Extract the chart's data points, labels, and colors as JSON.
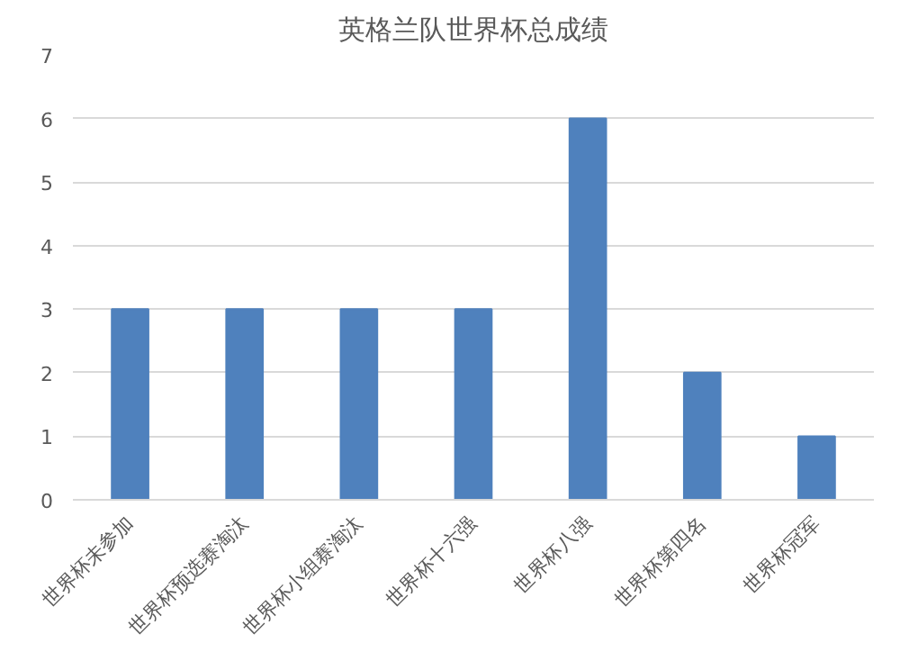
{
  "chart_data": {
    "type": "bar",
    "title": "英格兰队世界杯总成绩",
    "categories": [
      "世界杯未参加",
      "世界杯预选赛淘汰",
      "世界杯小组赛淘汰",
      "世界杯十六强",
      "世界杯八强",
      "世界杯第四名",
      "世界杯冠军"
    ],
    "values": [
      3,
      3,
      3,
      3,
      6,
      2,
      1
    ],
    "color": "#4f81bd",
    "ylim": [
      0,
      7
    ],
    "yticks": [
      0,
      1,
      2,
      3,
      4,
      5,
      6,
      7
    ],
    "grid": "y"
  }
}
